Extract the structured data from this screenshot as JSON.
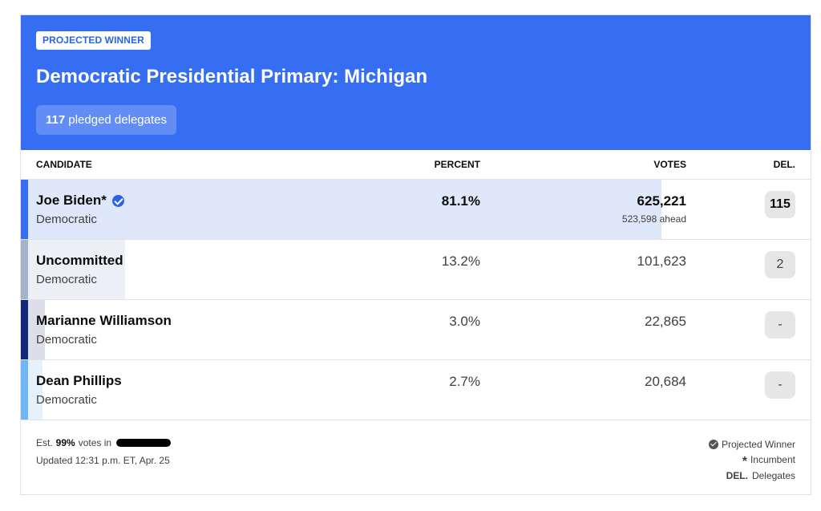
{
  "header": {
    "badge": "PROJECTED WINNER",
    "title": "Democratic Presidential Primary: Michigan",
    "delegates_count": "117",
    "delegates_label": "pledged delegates",
    "background_color": "#356ef3"
  },
  "columns": {
    "candidate": "CANDIDATE",
    "percent": "PERCENT",
    "votes": "VOTES",
    "del": "DEL."
  },
  "candidates": [
    {
      "name": "Joe Biden*",
      "party": "Democratic",
      "percent": "81.1%",
      "share": 81.1,
      "votes": "625,221",
      "ahead": "523,598 ahead",
      "delegates": "115",
      "winner": true,
      "icon": "check-badge-icon",
      "stripe_color": "#356ef3",
      "fill_color": "#dfe7fb"
    },
    {
      "name": "Uncommitted",
      "party": "Democratic",
      "percent": "13.2%",
      "share": 13.2,
      "votes": "101,623",
      "ahead": "",
      "delegates": "2",
      "winner": false,
      "stripe_color": "#a4b3cc",
      "fill_color": "#ecf0f6"
    },
    {
      "name": "Marianne Williamson",
      "party": "Democratic",
      "percent": "3.0%",
      "share": 3.0,
      "votes": "22,865",
      "ahead": "",
      "delegates": "-",
      "winner": false,
      "stripe_color": "#14287a",
      "fill_color": "#dcdfe9"
    },
    {
      "name": "Dean Phillips",
      "party": "Democratic",
      "percent": "2.7%",
      "share": 2.7,
      "votes": "20,684",
      "ahead": "",
      "delegates": "-",
      "winner": false,
      "stripe_color": "#6fb6f8",
      "fill_color": "#e5f2fe"
    }
  ],
  "footer": {
    "est_prefix": "Est.",
    "est_value": "99%",
    "est_suffix": "votes in",
    "updated": "Updated 12:31 p.m. ET, Apr. 25",
    "legend_winner": "Projected Winner",
    "legend_incumbent": "Incumbent",
    "legend_del_abbr": "DEL.",
    "legend_del_label": "Delegates"
  }
}
